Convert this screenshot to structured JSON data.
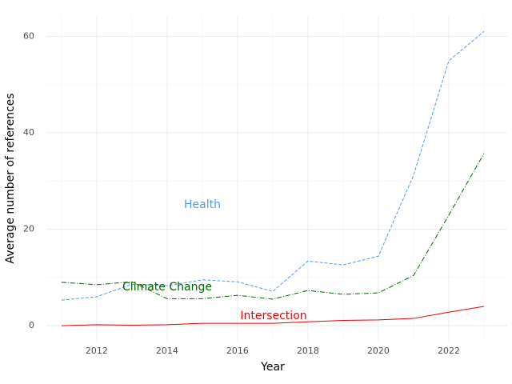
{
  "chart_data": {
    "type": "line",
    "x_label": "Year",
    "y_label": "Average number of references",
    "x": [
      2011,
      2012,
      2013,
      2014,
      2015,
      2016,
      2017,
      2018,
      2019,
      2020,
      2021,
      2022,
      2023
    ],
    "series": [
      {
        "name": "Health",
        "annotation": "Health",
        "color": "#5599ee",
        "linestyle": "dashed",
        "values": [
          5.3,
          6.0,
          8.6,
          8.3,
          9.5,
          9.1,
          7.1,
          13.4,
          12.6,
          14.4,
          31.2,
          54.9,
          61.0
        ]
      },
      {
        "name": "Climate Change",
        "annotation": "Climate Change",
        "color": "#006400",
        "linestyle": "dashdot",
        "values": [
          9.0,
          8.5,
          9.1,
          5.6,
          5.6,
          6.3,
          5.5,
          7.3,
          6.5,
          6.8,
          10.4,
          22.9,
          35.7
        ]
      },
      {
        "name": "Intersection",
        "annotation": "Intersection",
        "color": "#ee0000",
        "linestyle": "solid",
        "values": [
          0,
          0.2,
          0.1,
          0.2,
          0.5,
          0.5,
          0.5,
          0.8,
          1.1,
          1.2,
          1.5,
          2.8,
          4.0
        ]
      }
    ],
    "xlim": [
      2010.57,
      2023.66
    ],
    "ylim": [
      -3.3,
      64.2
    ],
    "xticks": [
      2012,
      2014,
      2016,
      2018,
      2020,
      2022
    ],
    "yticks": [
      0,
      20,
      40,
      60
    ],
    "grid": true
  }
}
